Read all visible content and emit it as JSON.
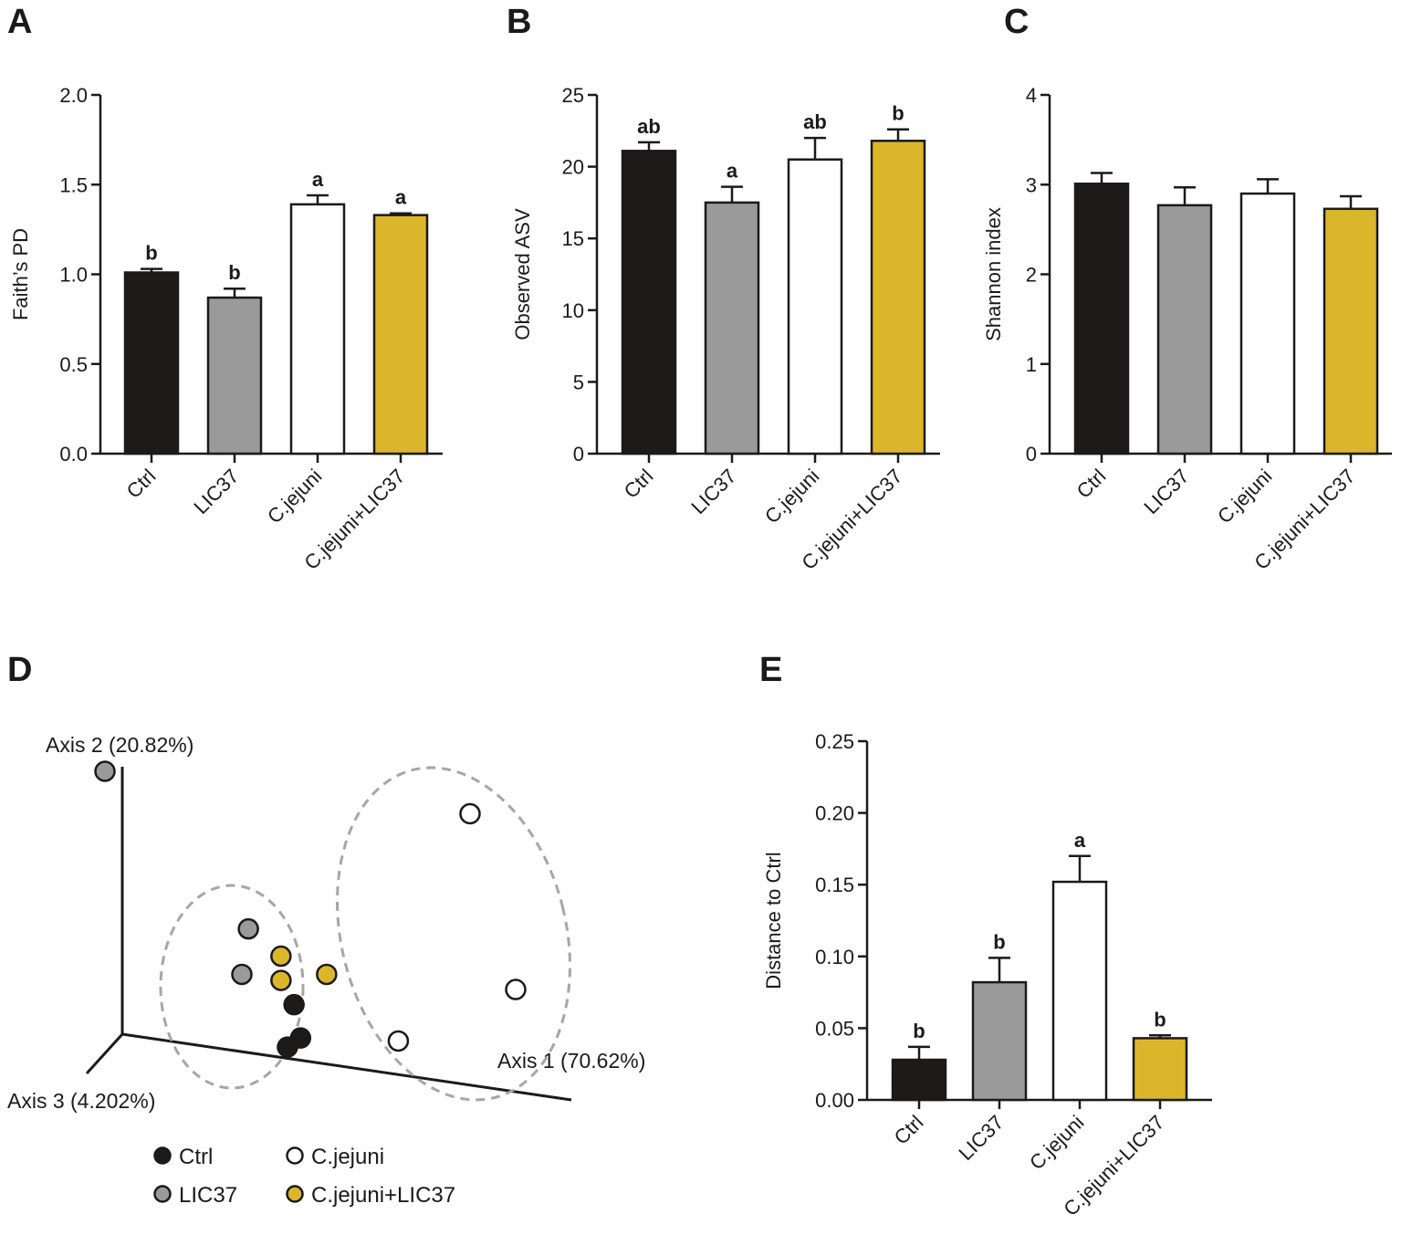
{
  "figure": {
    "panels": [
      "A",
      "B",
      "C",
      "D",
      "E"
    ]
  },
  "colors": {
    "Ctrl": "#1e1a19",
    "LIC37": "#9a9a9a",
    "C.jejuni": "#ffffff",
    "C.jejuni+LIC37": "#dcb62a",
    "outline": "#1a1a1a",
    "ellipse": "#a6a6a6"
  },
  "chart_data": [
    {
      "panel": "A",
      "type": "bar",
      "categories": [
        "Ctrl",
        "LIC37",
        "C.jejuni",
        "C.jejuni+LIC37"
      ],
      "values": [
        1.01,
        0.87,
        1.39,
        1.33
      ],
      "errors": [
        0.02,
        0.05,
        0.05,
        0.01
      ],
      "significance": [
        "b",
        "b",
        "a",
        "a"
      ],
      "ylabel": "Faith’s PD",
      "ylim": [
        0,
        2.0
      ],
      "yticks": [
        "0.0",
        "0.5",
        "1.0",
        "1.5",
        "2.0"
      ],
      "ytick_values": [
        0,
        0.5,
        1.0,
        1.5,
        2.0
      ],
      "grid": false
    },
    {
      "panel": "B",
      "type": "bar",
      "categories": [
        "Ctrl",
        "LIC37",
        "C.jejuni",
        "C.jejuni+LIC37"
      ],
      "values": [
        21.1,
        17.5,
        20.5,
        21.8
      ],
      "errors": [
        0.6,
        1.1,
        1.5,
        0.8
      ],
      "significance": [
        "ab",
        "a",
        "ab",
        "b"
      ],
      "ylabel": "Observed ASV",
      "ylim": [
        0,
        25
      ],
      "yticks": [
        "0",
        "5",
        "10",
        "15",
        "20",
        "25"
      ],
      "ytick_values": [
        0,
        5,
        10,
        15,
        20,
        25
      ],
      "grid": false
    },
    {
      "panel": "C",
      "type": "bar",
      "categories": [
        "Ctrl",
        "LIC37",
        "C.jejuni",
        "C.jejuni+LIC37"
      ],
      "values": [
        3.01,
        2.77,
        2.9,
        2.73
      ],
      "errors": [
        0.12,
        0.2,
        0.16,
        0.14
      ],
      "significance": [
        "",
        "",
        "",
        ""
      ],
      "ylabel": "Shannon index",
      "ylim": [
        0,
        4
      ],
      "yticks": [
        "0",
        "1",
        "2",
        "3",
        "4"
      ],
      "ytick_values": [
        0,
        1,
        2,
        3,
        4
      ],
      "grid": false
    },
    {
      "panel": "D",
      "type": "scatter",
      "axis_labels": {
        "axis1": "Axis 1 (70.62%)",
        "axis2": "Axis 2 (20.82%)",
        "axis3": "Axis 3 (4.202%)"
      },
      "points": [
        {
          "group": "LIC37",
          "x": 0.0,
          "y": 1.0
        },
        {
          "group": "LIC37",
          "x": 0.22,
          "y": 0.48
        },
        {
          "group": "LIC37",
          "x": 0.21,
          "y": 0.33
        },
        {
          "group": "C.jejuni+LIC37",
          "x": 0.27,
          "y": 0.39
        },
        {
          "group": "C.jejuni+LIC37",
          "x": 0.27,
          "y": 0.31
        },
        {
          "group": "C.jejuni+LIC37",
          "x": 0.34,
          "y": 0.33
        },
        {
          "group": "Ctrl",
          "x": 0.29,
          "y": 0.23
        },
        {
          "group": "Ctrl",
          "x": 0.3,
          "y": 0.12
        },
        {
          "group": "Ctrl",
          "x": 0.28,
          "y": 0.09
        },
        {
          "group": "C.jejuni",
          "x": 0.56,
          "y": 0.86
        },
        {
          "group": "C.jejuni",
          "x": 0.63,
          "y": 0.28
        },
        {
          "group": "C.jejuni",
          "x": 0.45,
          "y": 0.11
        }
      ],
      "legend": [
        "Ctrl",
        "C.jejuni",
        "LIC37",
        "C.jejuni+LIC37"
      ],
      "legend_placement": "bottom"
    },
    {
      "panel": "E",
      "type": "bar",
      "categories": [
        "Ctrl",
        "LIC37",
        "C.jejuni",
        "C.jejuni+LIC37"
      ],
      "values": [
        0.028,
        0.082,
        0.152,
        0.043
      ],
      "errors": [
        0.009,
        0.017,
        0.018,
        0.002
      ],
      "significance": [
        "b",
        "b",
        "a",
        "b"
      ],
      "ylabel": "Distance to Ctrl",
      "ylim": [
        0,
        0.25
      ],
      "yticks": [
        "0.00",
        "0.05",
        "0.10",
        "0.15",
        "0.20",
        "0.25"
      ],
      "ytick_values": [
        0,
        0.05,
        0.1,
        0.15,
        0.2,
        0.25
      ],
      "grid": false
    }
  ]
}
